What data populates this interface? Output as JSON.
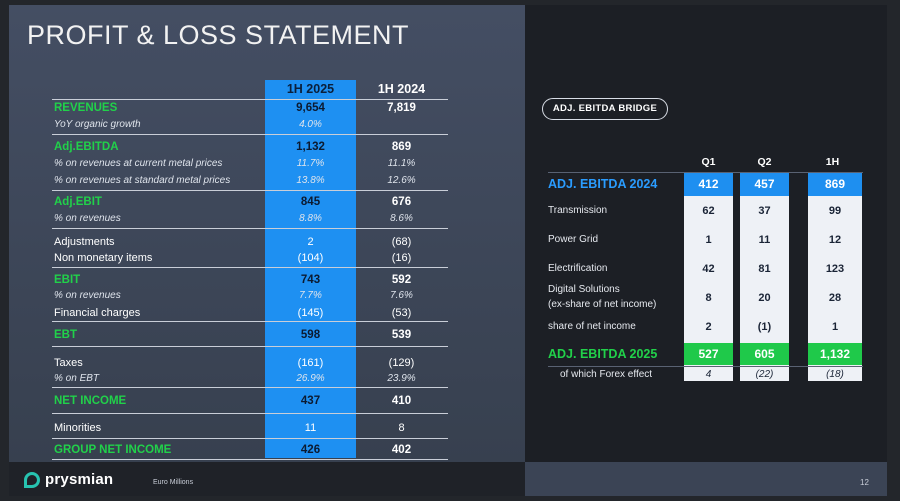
{
  "title": "PROFIT & LOSS STATEMENT",
  "pl": {
    "col1": "1H 2025",
    "col2": "1H 2024",
    "rows": [
      {
        "label": "REVENUES",
        "v1": "9,654",
        "v2": "7,819"
      },
      {
        "label": "YoY organic growth",
        "v1": "4.0%",
        "v2": ""
      },
      {
        "label": "Adj.EBITDA",
        "v1": "1,132",
        "v2": "869"
      },
      {
        "label": "% on revenues at current metal prices",
        "v1": "11.7%",
        "v2": "11.1%"
      },
      {
        "label": "% on revenues at standard metal prices",
        "v1": "13.8%",
        "v2": "12.6%"
      },
      {
        "label": "Adj.EBIT",
        "v1": "845",
        "v2": "676"
      },
      {
        "label": "% on revenues",
        "v1": "8.8%",
        "v2": "8.6%"
      },
      {
        "label": "Adjustments",
        "v1": "2",
        "v2": "(68)"
      },
      {
        "label": "Non monetary items",
        "v1": "(104)",
        "v2": "(16)"
      },
      {
        "label": "EBIT",
        "v1": "743",
        "v2": "592"
      },
      {
        "label": "% on revenues",
        "v1": "7.7%",
        "v2": "7.6%"
      },
      {
        "label": "Financial charges",
        "v1": "(145)",
        "v2": "(53)"
      },
      {
        "label": "EBT",
        "v1": "598",
        "v2": "539"
      },
      {
        "label": "Taxes",
        "v1": "(161)",
        "v2": "(129)"
      },
      {
        "label": "% on EBT",
        "v1": "26.9%",
        "v2": "23.9%"
      },
      {
        "label": "NET INCOME",
        "v1": "437",
        "v2": "410"
      },
      {
        "label": "Minorities",
        "v1": "11",
        "v2": "8"
      },
      {
        "label": "GROUP NET INCOME",
        "v1": "426",
        "v2": "402"
      }
    ]
  },
  "bridge": {
    "pill": "ADJ. EBITDA BRIDGE",
    "h1": "Q1",
    "h2": "Q2",
    "h3": "1H",
    "rows": [
      {
        "label": "ADJ. EBITDA 2024",
        "a": "412",
        "b": "457",
        "c": "869"
      },
      {
        "label": "Transmission",
        "a": "62",
        "b": "37",
        "c": "99"
      },
      {
        "label": "Power Grid",
        "a": "1",
        "b": "11",
        "c": "12"
      },
      {
        "label": "Electrification",
        "a": "42",
        "b": "81",
        "c": "123"
      },
      {
        "label": "Digital Solutions",
        "label2": "(ex-share of net income)",
        "a": "8",
        "b": "20",
        "c": "28"
      },
      {
        "label": "share of net income",
        "a": "2",
        "b": "(1)",
        "c": "1"
      },
      {
        "label": "ADJ. EBITDA 2025",
        "a": "527",
        "b": "605",
        "c": "1,132"
      },
      {
        "label": "of which Forex effect",
        "a": "4",
        "b": "(22)",
        "c": "(18)"
      }
    ]
  },
  "footer": {
    "logo": "prysmian",
    "unit": "Euro Millions",
    "page": "12"
  },
  "colors": {
    "accent_blue": "#1e90f2",
    "accent_green": "#21d14a",
    "logo_teal": "#27c3b0"
  }
}
